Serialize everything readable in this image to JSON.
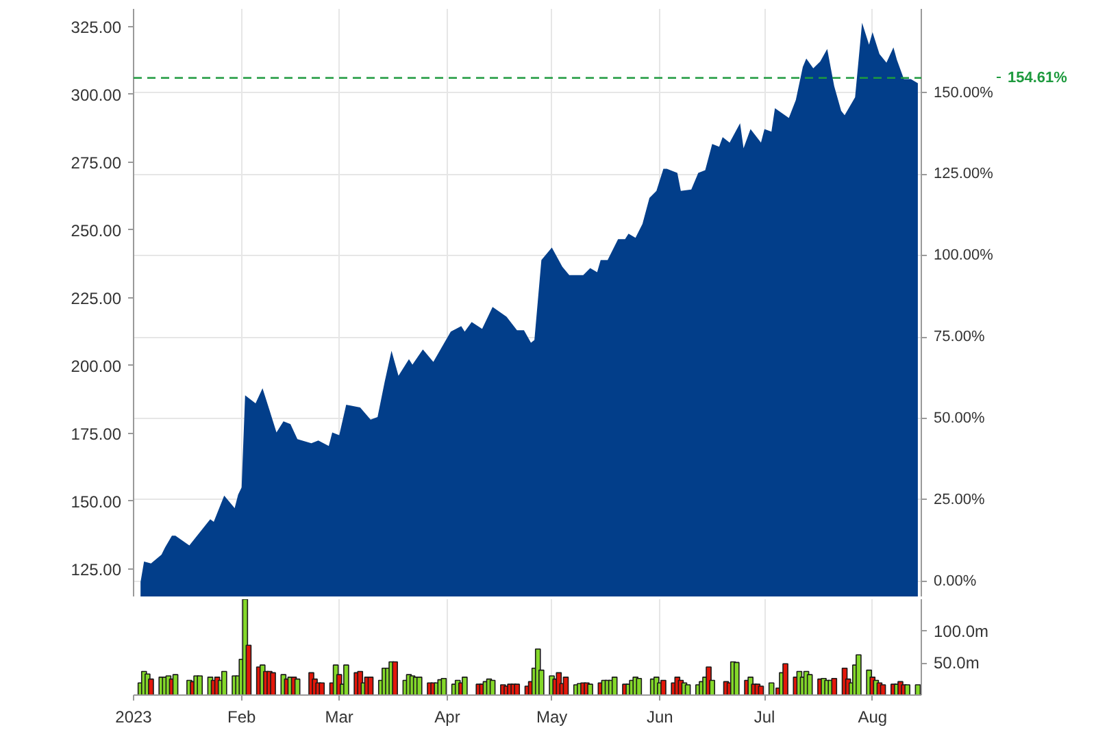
{
  "chart_data": [
    {
      "type": "area",
      "color": "#023e8a",
      "x": [
        "2023-01-03",
        "2023-01-04",
        "2023-01-06",
        "2023-01-09",
        "2023-01-10",
        "2023-01-12",
        "2023-01-13",
        "2023-01-17",
        "2023-01-23",
        "2023-01-24",
        "2023-01-27",
        "2023-01-30",
        "2023-01-31",
        "2023-02-01",
        "2023-02-02",
        "2023-02-05",
        "2023-02-07",
        "2023-02-09",
        "2023-02-11",
        "2023-02-13",
        "2023-02-15",
        "2023-02-17",
        "2023-02-21",
        "2023-02-23",
        "2023-02-26",
        "2023-02-27",
        "2023-03-01",
        "2023-03-03",
        "2023-03-07",
        "2023-03-10",
        "2023-03-12",
        "2023-03-14",
        "2023-03-16",
        "2023-03-18",
        "2023-03-21",
        "2023-03-22",
        "2023-03-25",
        "2023-03-28",
        "2023-04-02",
        "2023-04-05",
        "2023-04-06",
        "2023-04-08",
        "2023-04-11",
        "2023-04-14",
        "2023-04-18",
        "2023-04-21",
        "2023-04-23",
        "2023-04-25",
        "2023-04-26",
        "2023-04-28",
        "2023-05-01",
        "2023-05-04",
        "2023-05-06",
        "2023-05-10",
        "2023-05-12",
        "2023-05-14",
        "2023-05-15",
        "2023-05-17",
        "2023-05-20",
        "2023-05-22",
        "2023-05-23",
        "2023-05-25",
        "2023-05-27",
        "2023-05-29",
        "2023-05-31",
        "2023-06-02",
        "2023-06-03",
        "2023-06-06",
        "2023-06-07",
        "2023-06-10",
        "2023-06-12",
        "2023-06-14",
        "2023-06-16",
        "2023-06-18",
        "2023-06-19",
        "2023-06-21",
        "2023-06-24",
        "2023-06-25",
        "2023-06-27",
        "2023-06-30",
        "2023-07-01",
        "2023-07-03",
        "2023-07-04",
        "2023-07-08",
        "2023-07-10",
        "2023-07-12",
        "2023-07-13",
        "2023-07-15",
        "2023-07-17",
        "2023-07-19",
        "2023-07-21",
        "2023-07-23",
        "2023-07-24",
        "2023-07-27",
        "2023-07-29",
        "2023-07-31",
        "2023-08-01",
        "2023-08-03",
        "2023-08-05",
        "2023-08-07",
        "2023-08-08",
        "2023-08-10",
        "2023-08-12",
        "2023-08-14"
      ],
      "values": [
        120.1,
        127.7,
        127.0,
        130.2,
        132.8,
        137.2,
        137.2,
        133.6,
        143.3,
        142.3,
        152.0,
        147.4,
        152.4,
        155.0,
        189.0,
        186.0,
        191.6,
        183.5,
        175.3,
        179.4,
        178.4,
        172.8,
        171.3,
        172.3,
        170.3,
        175.3,
        174.3,
        185.5,
        184.5,
        180.0,
        181.0,
        193.7,
        205.4,
        196.2,
        202.3,
        200.3,
        205.9,
        201.3,
        212.5,
        214.5,
        212.5,
        216.0,
        213.5,
        221.6,
        218.0,
        213.0,
        213.0,
        208.4,
        209.4,
        238.9,
        243.5,
        236.4,
        233.3,
        233.3,
        235.9,
        234.4,
        238.9,
        238.9,
        246.6,
        246.6,
        248.6,
        247.1,
        252.2,
        261.8,
        264.4,
        272.5,
        272.5,
        271.0,
        264.4,
        264.9,
        271.0,
        272.0,
        281.7,
        280.7,
        284.2,
        282.2,
        289.3,
        280.1,
        287.2,
        282.2,
        287.2,
        286.2,
        294.9,
        291.3,
        297.9,
        310.1,
        313.2,
        309.6,
        312.1,
        316.7,
        303.0,
        293.9,
        292.3,
        298.9,
        326.4,
        318.3,
        322.9,
        314.8,
        311.7,
        317.3,
        312.7,
        305.6,
        305.6,
        304.1
      ],
      "xlim": [
        "2023-01-01",
        "2023-08-15"
      ],
      "xticks": [
        {
          "value": "2023-01-01",
          "label": null
        },
        {
          "value": "2023-02-01",
          "label": null
        },
        {
          "value": "2023-03-01",
          "label": null
        },
        {
          "value": "2023-04-01",
          "label": null
        },
        {
          "value": "2023-05-01",
          "label": null
        },
        {
          "value": "2023-06-01",
          "label": null
        },
        {
          "value": "2023-07-01",
          "label": null
        },
        {
          "value": "2023-08-01",
          "label": null
        }
      ],
      "ylim": [
        114.8,
        331.5
      ],
      "yticks": [
        {
          "value": 125,
          "label": "125.00"
        },
        {
          "value": 150,
          "label": "150.00"
        },
        {
          "value": 175,
          "label": "175.00"
        },
        {
          "value": 200,
          "label": "200.00"
        },
        {
          "value": 225,
          "label": "225.00"
        },
        {
          "value": 250,
          "label": "250.00"
        },
        {
          "value": 275,
          "label": "275.00"
        },
        {
          "value": 300,
          "label": "300.00"
        },
        {
          "value": 325,
          "label": "325.00"
        }
      ],
      "y2lim": [
        -4.7,
        175.8
      ],
      "y2ticks": [
        {
          "value": 0,
          "label": "0.00%"
        },
        {
          "value": 25,
          "label": "25.00%"
        },
        {
          "value": 50,
          "label": "50.00%"
        },
        {
          "value": 75,
          "label": "75.00%"
        },
        {
          "value": 100,
          "label": "100.00%"
        },
        {
          "value": 125,
          "label": "125.00%"
        },
        {
          "value": 150,
          "label": "150.00%"
        }
      ],
      "ref_lines": [
        {
          "axis": "y2",
          "value": 154.61,
          "label": "154.61%",
          "color": "#1e9a3e",
          "line_style": "dashed"
        }
      ],
      "grid": true,
      "tick_labels": "y"
    },
    {
      "type": "bar",
      "x": [
        "2023-01-03",
        "2023-01-04",
        "2023-01-05",
        "2023-01-06",
        "2023-01-09",
        "2023-01-10",
        "2023-01-11",
        "2023-01-12",
        "2023-01-13",
        "2023-01-17",
        "2023-01-18",
        "2023-01-19",
        "2023-01-20",
        "2023-01-23",
        "2023-01-24",
        "2023-01-25",
        "2023-01-26",
        "2023-01-27",
        "2023-01-30",
        "2023-01-31",
        "2023-02-01",
        "2023-02-02",
        "2023-02-03",
        "2023-02-06",
        "2023-02-07",
        "2023-02-08",
        "2023-02-09",
        "2023-02-10",
        "2023-02-13",
        "2023-02-14",
        "2023-02-15",
        "2023-02-16",
        "2023-02-17",
        "2023-02-21",
        "2023-02-22",
        "2023-02-23",
        "2023-02-24",
        "2023-02-27",
        "2023-02-28",
        "2023-03-01",
        "2023-03-02",
        "2023-03-03",
        "2023-03-06",
        "2023-03-07",
        "2023-03-08",
        "2023-03-09",
        "2023-03-10",
        "2023-03-13",
        "2023-03-14",
        "2023-03-15",
        "2023-03-16",
        "2023-03-17",
        "2023-03-20",
        "2023-03-21",
        "2023-03-22",
        "2023-03-23",
        "2023-03-24",
        "2023-03-27",
        "2023-03-28",
        "2023-03-29",
        "2023-03-30",
        "2023-03-31",
        "2023-04-03",
        "2023-04-04",
        "2023-04-05",
        "2023-04-06",
        "2023-04-10",
        "2023-04-11",
        "2023-04-12",
        "2023-04-13",
        "2023-04-14",
        "2023-04-17",
        "2023-04-18",
        "2023-04-19",
        "2023-04-20",
        "2023-04-21",
        "2023-04-24",
        "2023-04-25",
        "2023-04-26",
        "2023-04-27",
        "2023-04-28",
        "2023-05-01",
        "2023-05-02",
        "2023-05-03",
        "2023-05-04",
        "2023-05-05",
        "2023-05-08",
        "2023-05-09",
        "2023-05-10",
        "2023-05-11",
        "2023-05-12",
        "2023-05-15",
        "2023-05-16",
        "2023-05-17",
        "2023-05-18",
        "2023-05-19",
        "2023-05-22",
        "2023-05-23",
        "2023-05-24",
        "2023-05-25",
        "2023-05-26",
        "2023-05-30",
        "2023-05-31",
        "2023-06-01",
        "2023-06-02",
        "2023-06-05",
        "2023-06-06",
        "2023-06-07",
        "2023-06-08",
        "2023-06-09",
        "2023-06-12",
        "2023-06-13",
        "2023-06-14",
        "2023-06-15",
        "2023-06-16",
        "2023-06-20",
        "2023-06-21",
        "2023-06-22",
        "2023-06-23",
        "2023-06-26",
        "2023-06-27",
        "2023-06-28",
        "2023-06-29",
        "2023-06-30",
        "2023-07-03",
        "2023-07-05",
        "2023-07-06",
        "2023-07-07",
        "2023-07-10",
        "2023-07-11",
        "2023-07-12",
        "2023-07-13",
        "2023-07-14",
        "2023-07-17",
        "2023-07-18",
        "2023-07-19",
        "2023-07-20",
        "2023-07-21",
        "2023-07-24",
        "2023-07-25",
        "2023-07-26",
        "2023-07-27",
        "2023-07-28",
        "2023-07-31",
        "2023-08-01",
        "2023-08-02",
        "2023-08-03",
        "2023-08-04",
        "2023-08-07",
        "2023-08-08",
        "2023-08-09",
        "2023-08-10",
        "2023-08-11",
        "2023-08-14"
      ],
      "values": [
        19,
        37,
        33,
        25,
        28,
        28,
        30,
        25,
        32,
        23,
        21,
        30,
        30,
        28,
        23,
        28,
        23,
        37,
        30,
        30,
        56,
        150,
        78,
        44,
        47,
        37,
        37,
        35,
        32,
        25,
        28,
        28,
        25,
        35,
        25,
        19,
        19,
        19,
        47,
        32,
        17,
        47,
        35,
        37,
        19,
        28,
        28,
        23,
        42,
        42,
        52,
        52,
        23,
        32,
        30,
        28,
        28,
        19,
        19,
        19,
        24,
        26,
        17,
        23,
        19,
        28,
        17,
        17,
        21,
        25,
        23,
        16,
        14,
        17,
        17,
        17,
        14,
        21,
        42,
        72,
        39,
        30,
        25,
        35,
        18,
        28,
        16,
        18,
        19,
        19,
        17,
        19,
        23,
        23,
        23,
        28,
        17,
        17,
        23,
        28,
        26,
        25,
        28,
        19,
        23,
        19,
        28,
        23,
        19,
        16,
        16,
        21,
        28,
        44,
        23,
        21,
        19,
        52,
        51,
        23,
        28,
        17,
        17,
        14,
        19,
        11,
        35,
        49,
        28,
        37,
        28,
        37,
        32,
        25,
        26,
        23,
        23,
        26,
        42,
        25,
        19,
        47,
        63,
        39,
        28,
        23,
        19,
        16,
        17,
        17,
        21,
        16,
        16,
        16
      ],
      "colors": [
        "#84d82a",
        "#84d82a",
        "#84d82a",
        "#e3170a",
        "#84d82a",
        "#84d82a",
        "#84d82a",
        "#e3170a",
        "#84d82a",
        "#84d82a",
        "#e3170a",
        "#84d82a",
        "#84d82a",
        "#84d82a",
        "#e3170a",
        "#e3170a",
        "#84d82a",
        "#84d82a",
        "#84d82a",
        "#84d82a",
        "#84d82a",
        "#84d82a",
        "#e3170a",
        "#e3170a",
        "#84d82a",
        "#e3170a",
        "#e3170a",
        "#e3170a",
        "#84d82a",
        "#e3170a",
        "#84d82a",
        "#e3170a",
        "#84d82a",
        "#e3170a",
        "#e3170a",
        "#e3170a",
        "#e3170a",
        "#e3170a",
        "#84d82a",
        "#e3170a",
        "#84d82a",
        "#84d82a",
        "#e3170a",
        "#e3170a",
        "#84d82a",
        "#e3170a",
        "#e3170a",
        "#84d82a",
        "#84d82a",
        "#84d82a",
        "#84d82a",
        "#e3170a",
        "#84d82a",
        "#84d82a",
        "#84d82a",
        "#84d82a",
        "#84d82a",
        "#e3170a",
        "#e3170a",
        "#84d82a",
        "#84d82a",
        "#84d82a",
        "#84d82a",
        "#84d82a",
        "#e3170a",
        "#84d82a",
        "#e3170a",
        "#e3170a",
        "#84d82a",
        "#84d82a",
        "#84d82a",
        "#e3170a",
        "#e3170a",
        "#e3170a",
        "#e3170a",
        "#e3170a",
        "#e3170a",
        "#e3170a",
        "#84d82a",
        "#84d82a",
        "#84d82a",
        "#84d82a",
        "#e3170a",
        "#e3170a",
        "#e3170a",
        "#e3170a",
        "#84d82a",
        "#84d82a",
        "#e3170a",
        "#e3170a",
        "#84d82a",
        "#e3170a",
        "#84d82a",
        "#84d82a",
        "#84d82a",
        "#84d82a",
        "#e3170a",
        "#84d82a",
        "#84d82a",
        "#84d82a",
        "#84d82a",
        "#84d82a",
        "#84d82a",
        "#84d82a",
        "#e3170a",
        "#e3170a",
        "#e3170a",
        "#e3170a",
        "#84d82a",
        "#84d82a",
        "#84d82a",
        "#84d82a",
        "#84d82a",
        "#e3170a",
        "#84d82a",
        "#e3170a",
        "#e3170a",
        "#84d82a",
        "#84d82a",
        "#e3170a",
        "#84d82a",
        "#e3170a",
        "#e3170a",
        "#e3170a",
        "#84d82a",
        "#e3170a",
        "#84d82a",
        "#e3170a",
        "#e3170a",
        "#84d82a",
        "#84d82a",
        "#84d82a",
        "#84d82a",
        "#e3170a",
        "#84d82a",
        "#84d82a",
        "#84d82a",
        "#e3170a",
        "#e3170a",
        "#e3170a",
        "#84d82a",
        "#84d82a",
        "#84d82a",
        "#84d82a",
        "#e3170a",
        "#84d82a",
        "#e3170a",
        "#e3170a",
        "#e3170a",
        "#84d82a",
        "#e3170a",
        "#e3170a",
        "#84d82a",
        "#84d82a"
      ],
      "xlim": [
        "2023-01-01",
        "2023-08-15"
      ],
      "xticks": [
        {
          "value": "2023-01-01",
          "label": "2023"
        },
        {
          "value": "2023-02-01",
          "label": "Feb"
        },
        {
          "value": "2023-03-01",
          "label": "Mar"
        },
        {
          "value": "2023-04-01",
          "label": "Apr"
        },
        {
          "value": "2023-05-01",
          "label": "May"
        },
        {
          "value": "2023-06-01",
          "label": "Jun"
        },
        {
          "value": "2023-07-01",
          "label": "Jul"
        },
        {
          "value": "2023-08-01",
          "label": "Aug"
        }
      ],
      "ylim": [
        0,
        150
      ],
      "yticks": [
        {
          "value": 50,
          "label": "50.0m"
        },
        {
          "value": 100,
          "label": "100.0m"
        }
      ],
      "grid": "x"
    }
  ]
}
